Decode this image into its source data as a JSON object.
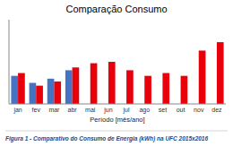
{
  "chart_data": {
    "type": "bar",
    "title": "Comparação Consumo",
    "x_label": "Período [mês/ano]",
    "annotations": [
      "Figura 1 - Comparativo do Consumo de Energia (kWh) na UFC 2015x2016"
    ],
    "categories": [
      "jan",
      "fev",
      "mar",
      "abr",
      "mai",
      "jun",
      "jul",
      "ago",
      "set",
      "out",
      "nov",
      "dez"
    ],
    "series": [
      {
        "color": "#4472C4",
        "values": [
          5.5,
          5.0,
          5.3,
          5.9,
          null,
          null,
          null,
          null,
          null,
          null,
          null,
          null
        ]
      },
      {
        "color": "#E8000A",
        "values": [
          5.7,
          4.8,
          5.1,
          6.1,
          6.4,
          6.5,
          5.9,
          5.5,
          5.7,
          5.5,
          7.3,
          7.9
        ]
      }
    ],
    "ylim": [
      3.5,
      9.5
    ],
    "yticks": [],
    "grid": false,
    "tick_labels": "x"
  }
}
